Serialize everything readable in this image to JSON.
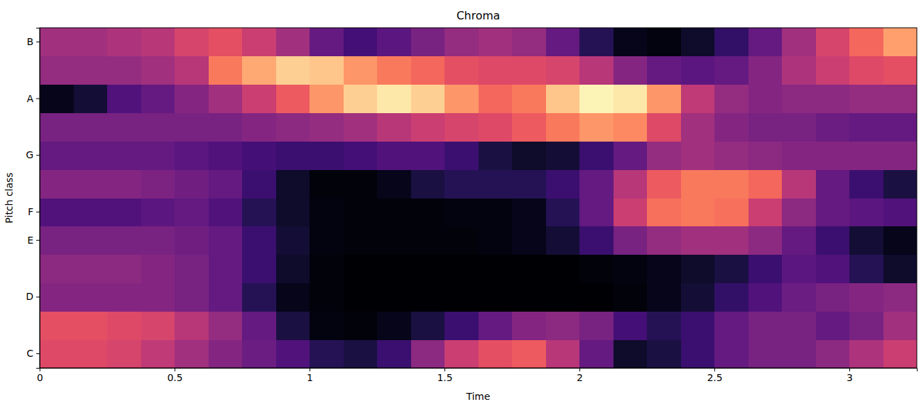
{
  "chart_data": {
    "type": "heatmap",
    "title": "Chroma",
    "x_label": "Time",
    "y_label": "Pitch class",
    "categories": [
      "C",
      null,
      "D",
      null,
      "E",
      "F",
      null,
      "G",
      null,
      "A",
      null,
      "B"
    ],
    "x": [
      0,
      0.125,
      0.25,
      0.375,
      0.5,
      0.625,
      0.75,
      0.875,
      1,
      1.125,
      1.25,
      1.375,
      1.5,
      1.625,
      1.75,
      1.875,
      2,
      2.125,
      2.25,
      2.375,
      2.5,
      2.625,
      2.75,
      2.875,
      3,
      3.125
    ],
    "xlim": [
      0,
      3.25
    ],
    "xticks": [
      0,
      0.5,
      1,
      1.5,
      2,
      2.5,
      3
    ],
    "color": "magma",
    "color_range": [
      0,
      1
    ],
    "cells": [
      [
        0.6,
        0.6,
        0.58,
        0.52,
        0.45,
        0.38,
        0.32,
        0.25,
        0.15,
        0.12,
        0.2,
        0.4,
        0.55,
        0.62,
        0.65,
        0.5,
        0.3,
        0.08,
        0.12,
        0.2,
        0.3,
        0.35,
        0.35,
        0.4,
        0.48,
        0.55
      ],
      [
        0.62,
        0.62,
        0.6,
        0.58,
        0.5,
        0.42,
        0.3,
        0.12,
        0.03,
        0.02,
        0.05,
        0.12,
        0.2,
        0.3,
        0.38,
        0.4,
        0.35,
        0.22,
        0.15,
        0.2,
        0.3,
        0.35,
        0.35,
        0.3,
        0.35,
        0.45
      ],
      [
        0.38,
        0.38,
        0.38,
        0.38,
        0.35,
        0.3,
        0.15,
        0.05,
        0.02,
        0,
        0,
        0,
        0,
        0,
        0,
        0,
        0,
        0.02,
        0.05,
        0.1,
        0.18,
        0.25,
        0.32,
        0.35,
        0.38,
        0.4
      ],
      [
        0.4,
        0.4,
        0.4,
        0.38,
        0.35,
        0.3,
        0.2,
        0.08,
        0.02,
        0,
        0,
        0,
        0,
        0,
        0,
        0,
        0.02,
        0.03,
        0.05,
        0.08,
        0.12,
        0.2,
        0.28,
        0.25,
        0.15,
        0.08
      ],
      [
        0.35,
        0.35,
        0.35,
        0.35,
        0.33,
        0.3,
        0.2,
        0.1,
        0.03,
        0.02,
        0.02,
        0.02,
        0.02,
        0.03,
        0.05,
        0.1,
        0.2,
        0.35,
        0.42,
        0.45,
        0.45,
        0.4,
        0.3,
        0.2,
        0.1,
        0.05
      ],
      [
        0.25,
        0.25,
        0.25,
        0.28,
        0.3,
        0.25,
        0.15,
        0.08,
        0.03,
        0.02,
        0.02,
        0.02,
        0.03,
        0.03,
        0.05,
        0.15,
        0.3,
        0.55,
        0.7,
        0.72,
        0.7,
        0.55,
        0.4,
        0.3,
        0.28,
        0.25
      ],
      [
        0.38,
        0.38,
        0.38,
        0.36,
        0.33,
        0.3,
        0.2,
        0.08,
        0.02,
        0.02,
        0.05,
        0.12,
        0.15,
        0.15,
        0.15,
        0.2,
        0.3,
        0.5,
        0.65,
        0.72,
        0.72,
        0.68,
        0.5,
        0.3,
        0.2,
        0.12
      ],
      [
        0.3,
        0.3,
        0.3,
        0.3,
        0.28,
        0.25,
        0.22,
        0.2,
        0.2,
        0.22,
        0.25,
        0.25,
        0.2,
        0.12,
        0.08,
        0.1,
        0.2,
        0.3,
        0.42,
        0.45,
        0.42,
        0.4,
        0.38,
        0.38,
        0.38,
        0.38
      ],
      [
        0.35,
        0.35,
        0.35,
        0.35,
        0.35,
        0.35,
        0.38,
        0.4,
        0.42,
        0.45,
        0.5,
        0.55,
        0.58,
        0.6,
        0.65,
        0.72,
        0.78,
        0.75,
        0.6,
        0.45,
        0.38,
        0.35,
        0.35,
        0.32,
        0.3,
        0.3
      ],
      [
        0.05,
        0.1,
        0.25,
        0.3,
        0.38,
        0.45,
        0.55,
        0.65,
        0.78,
        0.9,
        0.95,
        0.9,
        0.78,
        0.68,
        0.72,
        0.88,
        0.98,
        0.95,
        0.78,
        0.52,
        0.42,
        0.38,
        0.4,
        0.4,
        0.42,
        0.42
      ],
      [
        0.42,
        0.42,
        0.42,
        0.45,
        0.5,
        0.72,
        0.82,
        0.9,
        0.88,
        0.78,
        0.72,
        0.68,
        0.62,
        0.6,
        0.6,
        0.58,
        0.5,
        0.38,
        0.3,
        0.28,
        0.3,
        0.38,
        0.48,
        0.55,
        0.6,
        0.62
      ],
      [
        0.45,
        0.45,
        0.48,
        0.5,
        0.58,
        0.62,
        0.55,
        0.45,
        0.3,
        0.22,
        0.28,
        0.35,
        0.42,
        0.45,
        0.42,
        0.3,
        0.15,
        0.05,
        0.03,
        0.08,
        0.18,
        0.3,
        0.45,
        0.58,
        0.68,
        0.8
      ]
    ]
  }
}
